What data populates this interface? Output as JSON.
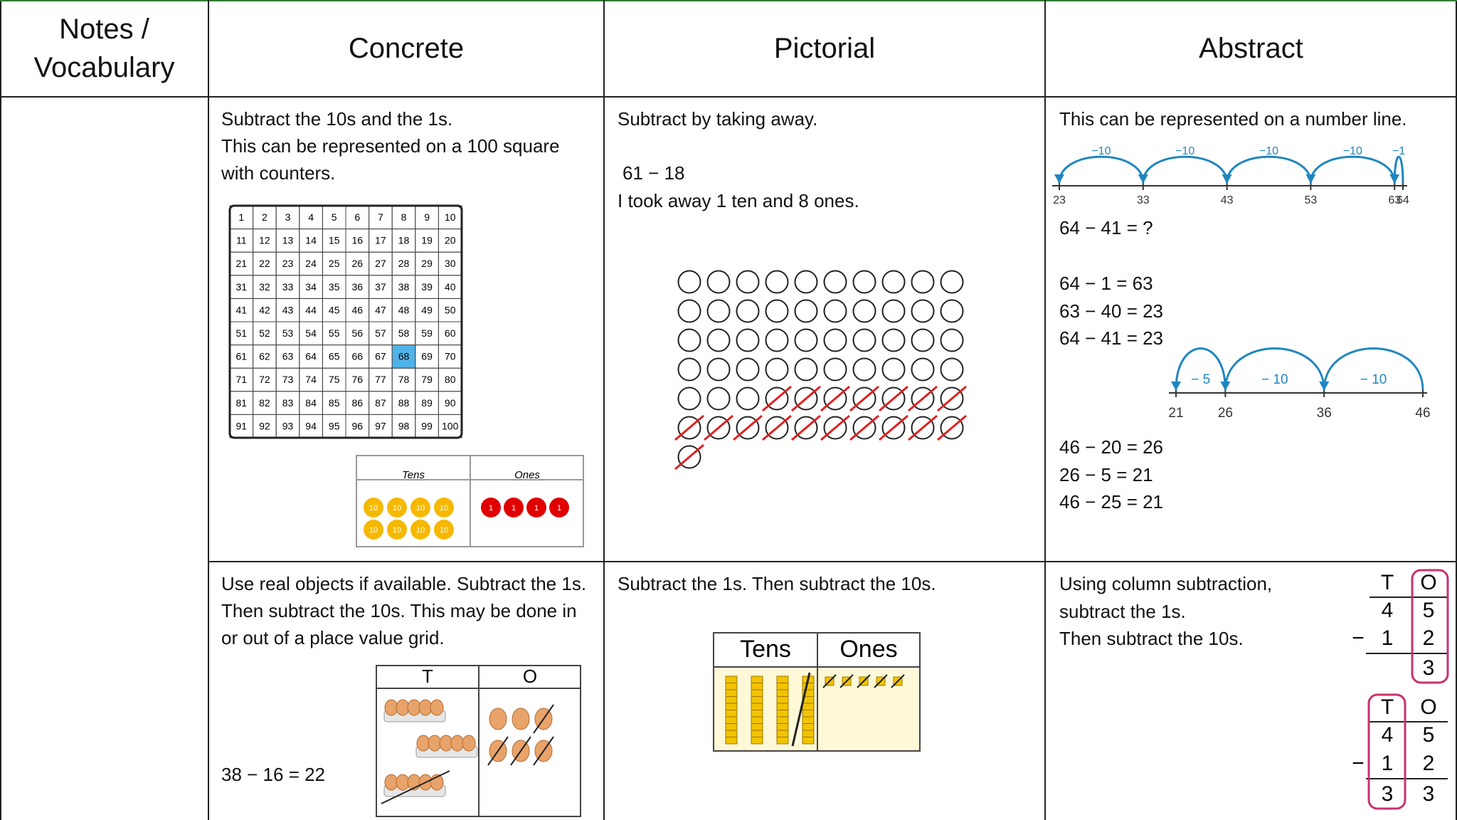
{
  "header": {
    "columns": [
      "Notes / Vocabulary",
      "Concrete",
      "Pictorial",
      "Abstract"
    ]
  },
  "rows": [
    {
      "concrete": {
        "text": [
          "Subtract the 10s and the 1s.",
          "This can be represented on a 100 square with counters."
        ],
        "hundred_square": {
          "numbers": [
            1,
            2,
            3,
            4,
            5,
            6,
            7,
            8,
            9,
            10,
            11,
            12,
            13,
            14,
            15,
            16,
            17,
            18,
            19,
            20,
            21,
            22,
            23,
            24,
            25,
            26,
            27,
            28,
            29,
            30,
            31,
            32,
            33,
            34,
            35,
            36,
            37,
            38,
            39,
            40,
            41,
            42,
            43,
            44,
            45,
            46,
            47,
            48,
            49,
            50,
            51,
            52,
            53,
            54,
            55,
            56,
            57,
            58,
            59,
            60,
            61,
            62,
            63,
            64,
            65,
            66,
            67,
            68,
            69,
            70,
            71,
            72,
            73,
            74,
            75,
            76,
            77,
            78,
            79,
            80,
            81,
            82,
            83,
            84,
            85,
            86,
            87,
            88,
            89,
            90,
            91,
            92,
            93,
            94,
            95,
            96,
            97,
            98,
            99,
            100
          ],
          "highlight": 68
        },
        "place_value": {
          "headers": [
            "Tens",
            "Ones"
          ],
          "tens_counter": "10",
          "ones_counter": "1"
        }
      },
      "pictorial": {
        "text": "Subtract by taking away.",
        "calculation": "61 − 18",
        "explanation": "I took away 1 ten and 8 ones."
      },
      "abstract": {
        "text": "This can be represented on a number line.",
        "number_line_1": {
          "jumps": [
            "−10",
            "−10",
            "−10",
            "−10",
            "−1"
          ],
          "ticks": [
            23,
            33,
            43,
            53,
            63,
            64
          ]
        },
        "question": "64 − 41 = ?",
        "steps_1": [
          "64 − 1 = 63",
          "63 − 40 = 23",
          "64 − 41 = 23"
        ],
        "number_line_2": {
          "jumps": [
            "− 5",
            "− 10",
            "− 10"
          ],
          "ticks": [
            21,
            26,
            36,
            46
          ]
        },
        "steps_2": [
          "46 − 20 = 26",
          "26 − 5 = 21",
          "46 − 25 = 21"
        ]
      }
    },
    {
      "concrete": {
        "text": "Use real objects if available. Subtract the 1s. Then subtract the 10s. This may be done in or out of a place value grid.",
        "calculation": "38 − 16 = 22",
        "headers": [
          "T",
          "O"
        ]
      },
      "pictorial": {
        "text": "Subtract the 1s. Then subtract the 10s.",
        "headers": [
          "Tens",
          "Ones"
        ]
      },
      "abstract": {
        "text": [
          "Using column subtraction,",
          "subtract the 1s.",
          "Then subtract the 10s."
        ],
        "columns": [
          {
            "headers": [
              "T",
              "O"
            ],
            "top": [
              "4",
              "5"
            ],
            "operator": "−",
            "bottom": [
              "1",
              "2"
            ],
            "result": [
              "3"
            ]
          },
          {
            "headers": [
              "T",
              "O"
            ],
            "top": [
              "4",
              "5"
            ],
            "operator": "−",
            "bottom": [
              "1",
              "2"
            ],
            "result": [
              "3",
              "3"
            ]
          }
        ]
      }
    }
  ]
}
